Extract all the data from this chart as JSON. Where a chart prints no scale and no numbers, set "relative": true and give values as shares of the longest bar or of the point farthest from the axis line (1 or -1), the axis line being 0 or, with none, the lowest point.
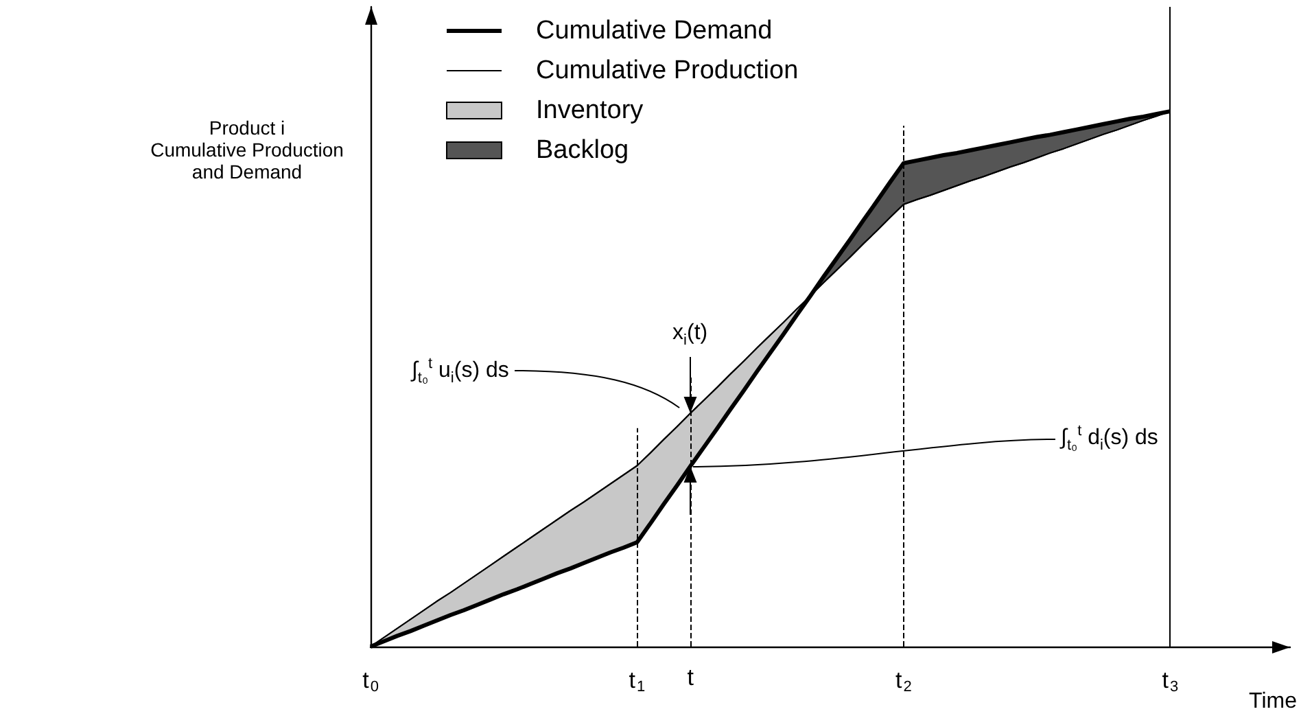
{
  "chart_data": {
    "type": "line",
    "relative": true,
    "ylabel": "Product i\nCumulative Production\nand Demand",
    "xlabel": "Time",
    "categories": [
      "t$_{0}$",
      null,
      null,
      null,
      null,
      null,
      null,
      null,
      null,
      null,
      null,
      null,
      null,
      null,
      null,
      null,
      null,
      null,
      null,
      null,
      "t$_{1}$",
      null,
      null,
      null,
      "t",
      null,
      null,
      null,
      null,
      null,
      null,
      null,
      null,
      null,
      null,
      null,
      null,
      null,
      null,
      null,
      "t$_{2}$",
      null,
      null,
      null,
      null,
      null,
      null,
      null,
      null,
      null,
      null,
      null,
      null,
      null,
      null,
      null,
      null,
      null,
      null,
      null,
      "t$_{3}$",
      null,
      null,
      null,
      null,
      null,
      null,
      null,
      null,
      null
    ],
    "tick_labels": "x",
    "legend": "top",
    "grid": false,
    "marker": "none",
    "series": [
      {
        "name": "Cumulative Demand",
        "color": "#000000",
        "values": [
          0,
          0.01,
          0.02,
          0.029,
          0.039,
          0.049,
          0.059,
          0.068,
          0.078,
          0.088,
          0.098,
          0.107,
          0.117,
          0.127,
          0.137,
          0.146,
          0.156,
          0.166,
          0.176,
          0.185,
          0.195,
          0.23,
          0.266,
          0.301,
          0.337,
          0.372,
          0.407,
          0.443,
          0.478,
          0.514,
          0.549,
          0.584,
          0.62,
          0.655,
          0.691,
          0.726,
          0.761,
          0.797,
          0.832,
          0.868,
          0.903,
          0.908,
          0.913,
          0.918,
          0.922,
          0.927,
          0.932,
          0.937,
          0.942,
          0.947,
          0.952,
          0.956,
          0.961,
          0.966,
          0.971,
          0.976,
          0.981,
          0.986,
          0.99,
          0.995,
          1,
          null,
          null,
          null,
          null,
          null,
          null,
          null,
          null,
          null
        ]
      },
      {
        "name": "Cumulative Production",
        "color": "#000000",
        "values": [
          0,
          0.017,
          0.034,
          0.051,
          0.068,
          0.085,
          0.101,
          0.118,
          0.135,
          0.152,
          0.169,
          0.186,
          0.203,
          0.22,
          0.237,
          0.254,
          0.27,
          0.287,
          0.304,
          0.321,
          0.338,
          0.362,
          0.387,
          0.411,
          0.436,
          0.46,
          0.484,
          0.509,
          0.533,
          0.558,
          0.582,
          0.606,
          0.631,
          0.655,
          0.68,
          0.704,
          0.728,
          0.753,
          0.777,
          0.802,
          0.826,
          0.835,
          0.843,
          0.852,
          0.861,
          0.87,
          0.878,
          0.887,
          0.896,
          0.904,
          0.913,
          0.922,
          0.93,
          0.939,
          0.948,
          0.957,
          0.965,
          0.974,
          0.983,
          0.991,
          1,
          null,
          null,
          null,
          null,
          null,
          null,
          null,
          null,
          null
        ]
      },
      {
        "name": "Inventory",
        "type": "area",
        "color": "#c8c8c8",
        "values": [
          0,
          0.017,
          0.034,
          0.051,
          0.068,
          0.085,
          0.101,
          0.118,
          0.135,
          0.152,
          0.169,
          0.186,
          0.203,
          0.22,
          0.237,
          0.254,
          0.27,
          0.287,
          0.304,
          0.321,
          0.338,
          0.362,
          0.387,
          0.411,
          0.436,
          0.46,
          0.484,
          0.509,
          0.533,
          0.558,
          0.582,
          0.606,
          0.631,
          0.655,
          null,
          null,
          null,
          null,
          null,
          null,
          null,
          null,
          null,
          null,
          null,
          null,
          null,
          null,
          null,
          null,
          null,
          null,
          null,
          null,
          null,
          null,
          null,
          null,
          null,
          null,
          null,
          null,
          null,
          null,
          null,
          null,
          null,
          null,
          null,
          null
        ]
      },
      {
        "name": "Backlog",
        "type": "area",
        "color": "#555555",
        "values": [
          null,
          null,
          null,
          null,
          null,
          null,
          null,
          null,
          null,
          null,
          null,
          null,
          null,
          null,
          null,
          null,
          null,
          null,
          null,
          null,
          null,
          null,
          null,
          null,
          null,
          null,
          null,
          null,
          null,
          null,
          null,
          null,
          null,
          0.655,
          0.691,
          0.726,
          0.761,
          0.797,
          0.832,
          0.868,
          0.903,
          0.908,
          0.913,
          0.918,
          0.922,
          0.927,
          0.932,
          0.937,
          0.942,
          0.947,
          0.952,
          0.956,
          0.961,
          0.966,
          0.971,
          0.976,
          0.981,
          0.986,
          0.99,
          0.995,
          1,
          null,
          null,
          null,
          null,
          null,
          null,
          null,
          null,
          null
        ]
      }
    ],
    "ref_lines": [
      {
        "axis": "x",
        "value": "t$_{1}$",
        "line_style": "dashed"
      },
      {
        "axis": "x",
        "value": "t",
        "line_style": "dashed"
      },
      {
        "axis": "x",
        "value": "t$_{2}$",
        "line_style": "dashed"
      },
      {
        "axis": "x",
        "value": "t$_{3}$",
        "line_style": "solid"
      }
    ],
    "annotations": [
      {
        "text": "x$_{i}$(t)",
        "x": "t",
        "y": 0.436
      },
      "∫$_{t₀}$$^{t}$ u$_{i}$(s) ds",
      {
        "text": "∫$_{t₀}$$^{t}$ d$_{i}$(s) ds",
        "x": "t",
        "y": 0.337
      }
    ]
  }
}
